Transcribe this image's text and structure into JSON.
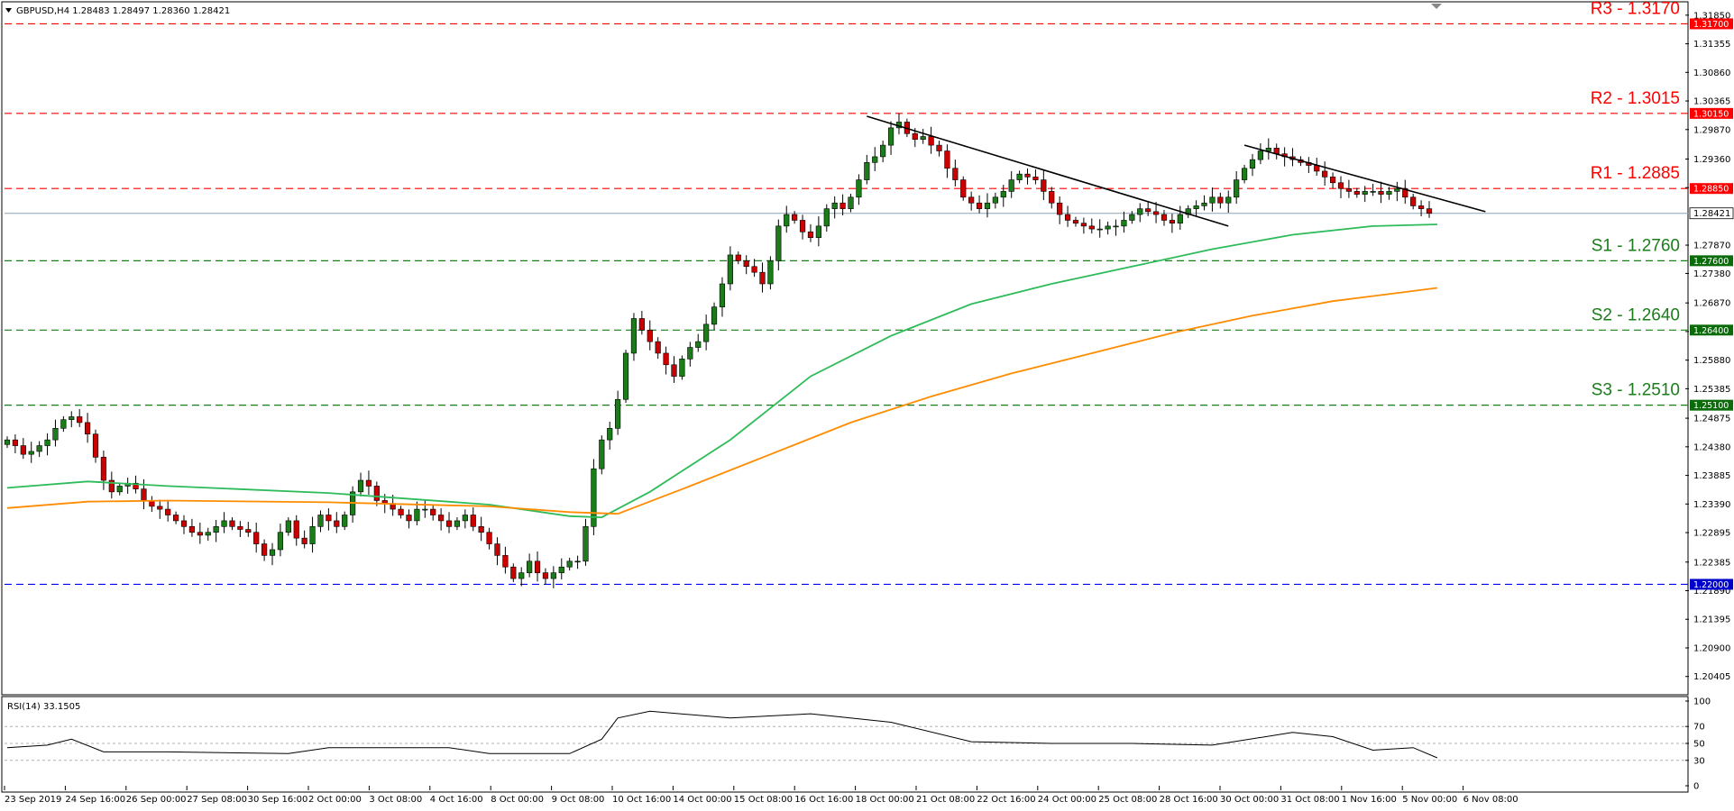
{
  "chart_header": {
    "symbol_line": "GBPUSD,H4  1.28483 1.28497 1.28360 1.28421",
    "rsi_label": "RSI(14) 33.1505"
  },
  "colors": {
    "resistance": "#ff0000",
    "support": "#1a7d1a",
    "floor": "#0000ff",
    "ma_fast": "#2ebb5a",
    "ma_slow": "#ff8c00",
    "candle_up": "#1a7d1a",
    "candle_down": "#cc0000",
    "trendline": "#000000"
  },
  "levels": [
    {
      "id": "r3",
      "label": "R3 - 1.3170",
      "pill": "1.31700",
      "value": 1.317,
      "kind": "resistance"
    },
    {
      "id": "r2",
      "label": "R2 - 1.3015",
      "pill": "1.30150",
      "value": 1.3015,
      "kind": "resistance"
    },
    {
      "id": "r1",
      "label": "R1 - 1.2885",
      "pill": "1.28850",
      "value": 1.2885,
      "kind": "resistance"
    },
    {
      "id": "s1",
      "label": "S1 - 1.2760",
      "pill": "1.27600",
      "value": 1.276,
      "kind": "support"
    },
    {
      "id": "s2",
      "label": "S2 - 1.2640",
      "pill": "1.26400",
      "value": 1.264,
      "kind": "support"
    },
    {
      "id": "s3",
      "label": "S3 - 1.2510",
      "pill": "1.25100",
      "value": 1.251,
      "kind": "support"
    },
    {
      "id": "floor",
      "label": "",
      "pill": "1.22000",
      "value": 1.22,
      "kind": "floor"
    }
  ],
  "current_price": {
    "value": 1.28421,
    "pill": "1.28421"
  },
  "chart_data": {
    "type": "candlestick",
    "symbol": "GBPUSD",
    "timeframe": "H4",
    "ylim": [
      1.2012,
      1.3205
    ],
    "y_ticks": [
      {
        "value": 1.3185,
        "label": "1.31850"
      },
      {
        "value": 1.31355,
        "label": "1.31355"
      },
      {
        "value": 1.3086,
        "label": "1.30860"
      },
      {
        "value": 1.30365,
        "label": "1.30365"
      },
      {
        "value": 1.2987,
        "label": "1.29870"
      },
      {
        "value": 1.2936,
        "label": "1.29360"
      },
      {
        "value": 1.28865,
        "label": "1.28865"
      },
      {
        "value": 1.2787,
        "label": "1.27870"
      },
      {
        "value": 1.2738,
        "label": "1.27380"
      },
      {
        "value": 1.2687,
        "label": "1.26870"
      },
      {
        "value": 1.26375,
        "label": "1.26375"
      },
      {
        "value": 1.2588,
        "label": "1.25880"
      },
      {
        "value": 1.25385,
        "label": "1.25385"
      },
      {
        "value": 1.24875,
        "label": "1.24875"
      },
      {
        "value": 1.2438,
        "label": "1.24380"
      },
      {
        "value": 1.23885,
        "label": "1.23885"
      },
      {
        "value": 1.2339,
        "label": "1.23390"
      },
      {
        "value": 1.22895,
        "label": "1.22895"
      },
      {
        "value": 1.22385,
        "label": "1.22385"
      },
      {
        "value": 1.2189,
        "label": "1.21890"
      },
      {
        "value": 1.21395,
        "label": "1.21395"
      },
      {
        "value": 1.209,
        "label": "1.20900"
      },
      {
        "value": 1.20405,
        "label": "1.20405"
      }
    ],
    "x_labels": [
      "23 Sep 2019",
      "24 Sep 16:00",
      "26 Sep 00:00",
      "27 Sep 08:00",
      "30 Sep 16:00",
      "2 Oct 00:00",
      "3 Oct 08:00",
      "4 Oct 16:00",
      "8 Oct 00:00",
      "9 Oct 08:00",
      "10 Oct 16:00",
      "14 Oct 00:00",
      "15 Oct 08:00",
      "16 Oct 16:00",
      "18 Oct 00:00",
      "21 Oct 08:00",
      "22 Oct 16:00",
      "24 Oct 00:00",
      "25 Oct 08:00",
      "28 Oct 16:00",
      "30 Oct 00:00",
      "31 Oct 08:00",
      "1 Nov 16:00",
      "5 Nov 00:00",
      "6 Nov 08:00"
    ],
    "close_path": [
      1.245,
      1.244,
      1.2425,
      1.243,
      1.244,
      1.245,
      1.247,
      1.2485,
      1.249,
      1.248,
      1.246,
      1.242,
      1.238,
      1.236,
      1.237,
      1.2375,
      1.2365,
      1.2345,
      1.2335,
      1.233,
      1.232,
      1.231,
      1.23,
      1.229,
      1.2285,
      1.229,
      1.23,
      1.231,
      1.23,
      1.2295,
      1.229,
      1.227,
      1.225,
      1.226,
      1.229,
      1.231,
      1.228,
      1.227,
      1.23,
      1.232,
      1.231,
      1.23,
      1.232,
      1.236,
      1.238,
      1.237,
      1.2345,
      1.234,
      1.233,
      1.232,
      1.231,
      1.233,
      1.233,
      1.232,
      1.231,
      1.23,
      1.231,
      1.232,
      1.23,
      1.229,
      1.227,
      1.225,
      1.223,
      1.221,
      1.222,
      1.224,
      1.222,
      1.221,
      1.222,
      1.223,
      1.224,
      1.224,
      1.23,
      1.24,
      1.245,
      1.247,
      1.252,
      1.26,
      1.266,
      1.264,
      1.262,
      1.26,
      1.258,
      1.256,
      1.259,
      1.261,
      1.262,
      1.265,
      1.268,
      1.272,
      1.277,
      1.276,
      1.275,
      1.274,
      1.272,
      1.276,
      1.282,
      1.284,
      1.283,
      1.281,
      1.28,
      1.282,
      1.285,
      1.286,
      1.285,
      1.287,
      1.29,
      1.293,
      1.294,
      1.296,
      1.299,
      1.3,
      1.298,
      1.297,
      1.2975,
      1.296,
      1.295,
      1.292,
      1.29,
      1.287,
      1.286,
      1.285,
      1.286,
      1.287,
      1.288,
      1.29,
      1.291,
      1.2905,
      1.29,
      1.288,
      1.286,
      1.284,
      1.283,
      1.2825,
      1.282,
      1.2815,
      1.2815,
      1.282,
      1.282,
      1.283,
      1.284,
      1.285,
      1.2845,
      1.284,
      1.283,
      1.2825,
      1.284,
      1.285,
      1.2855,
      1.286,
      1.287,
      1.286,
      1.287,
      1.29,
      1.292,
      1.2935,
      1.295,
      1.2955,
      1.2945,
      1.294,
      1.2935,
      1.293,
      1.2925,
      1.2915,
      1.2905,
      1.2895,
      1.2885,
      1.288,
      1.2875,
      1.288,
      1.288,
      1.2875,
      1.288,
      1.2885,
      1.287,
      1.2855,
      1.285,
      1.2842
    ],
    "ma_fast": [
      [
        0,
        1.2367
      ],
      [
        10,
        1.2378
      ],
      [
        20,
        1.237
      ],
      [
        40,
        1.2358
      ],
      [
        60,
        1.2338
      ],
      [
        70,
        1.2318
      ],
      [
        74,
        1.2316
      ],
      [
        80,
        1.236
      ],
      [
        90,
        1.245
      ],
      [
        100,
        1.256
      ],
      [
        110,
        1.263
      ],
      [
        120,
        1.2685
      ],
      [
        130,
        1.272
      ],
      [
        140,
        1.275
      ],
      [
        150,
        1.278
      ],
      [
        160,
        1.2805
      ],
      [
        170,
        1.282
      ],
      [
        178,
        1.2823
      ]
    ],
    "ma_slow": [
      [
        0,
        1.2332
      ],
      [
        10,
        1.2343
      ],
      [
        20,
        1.2345
      ],
      [
        40,
        1.2342
      ],
      [
        60,
        1.2335
      ],
      [
        70,
        1.2325
      ],
      [
        76,
        1.2322
      ],
      [
        85,
        1.237
      ],
      [
        95,
        1.2425
      ],
      [
        105,
        1.248
      ],
      [
        115,
        1.2525
      ],
      [
        125,
        1.2565
      ],
      [
        135,
        1.26
      ],
      [
        145,
        1.2635
      ],
      [
        155,
        1.2665
      ],
      [
        165,
        1.269
      ],
      [
        178,
        1.2713
      ]
    ],
    "trendlines": [
      [
        [
          107,
          1.301
        ],
        [
          152,
          1.282
        ]
      ],
      [
        [
          154,
          1.296
        ],
        [
          184,
          1.2845
        ]
      ]
    ],
    "rsi": {
      "ylim": [
        0,
        100
      ],
      "ticks": [
        {
          "value": 100,
          "label": "100"
        },
        {
          "value": 70,
          "label": "70"
        },
        {
          "value": 50,
          "label": "50"
        },
        {
          "value": 30,
          "label": "30"
        },
        {
          "value": 0,
          "label": "0"
        }
      ],
      "dashed_levels": [
        70,
        50,
        30
      ],
      "values": [
        [
          0,
          45
        ],
        [
          5,
          48
        ],
        [
          8,
          55
        ],
        [
          12,
          40
        ],
        [
          20,
          40
        ],
        [
          35,
          38
        ],
        [
          40,
          45
        ],
        [
          55,
          45
        ],
        [
          60,
          38
        ],
        [
          70,
          38
        ],
        [
          74,
          55
        ],
        [
          76,
          80
        ],
        [
          80,
          88
        ],
        [
          90,
          80
        ],
        [
          100,
          85
        ],
        [
          110,
          75
        ],
        [
          120,
          52
        ],
        [
          130,
          50
        ],
        [
          140,
          50
        ],
        [
          150,
          48
        ],
        [
          160,
          63
        ],
        [
          165,
          58
        ],
        [
          170,
          42
        ],
        [
          175,
          45
        ],
        [
          178,
          33
        ]
      ]
    }
  }
}
